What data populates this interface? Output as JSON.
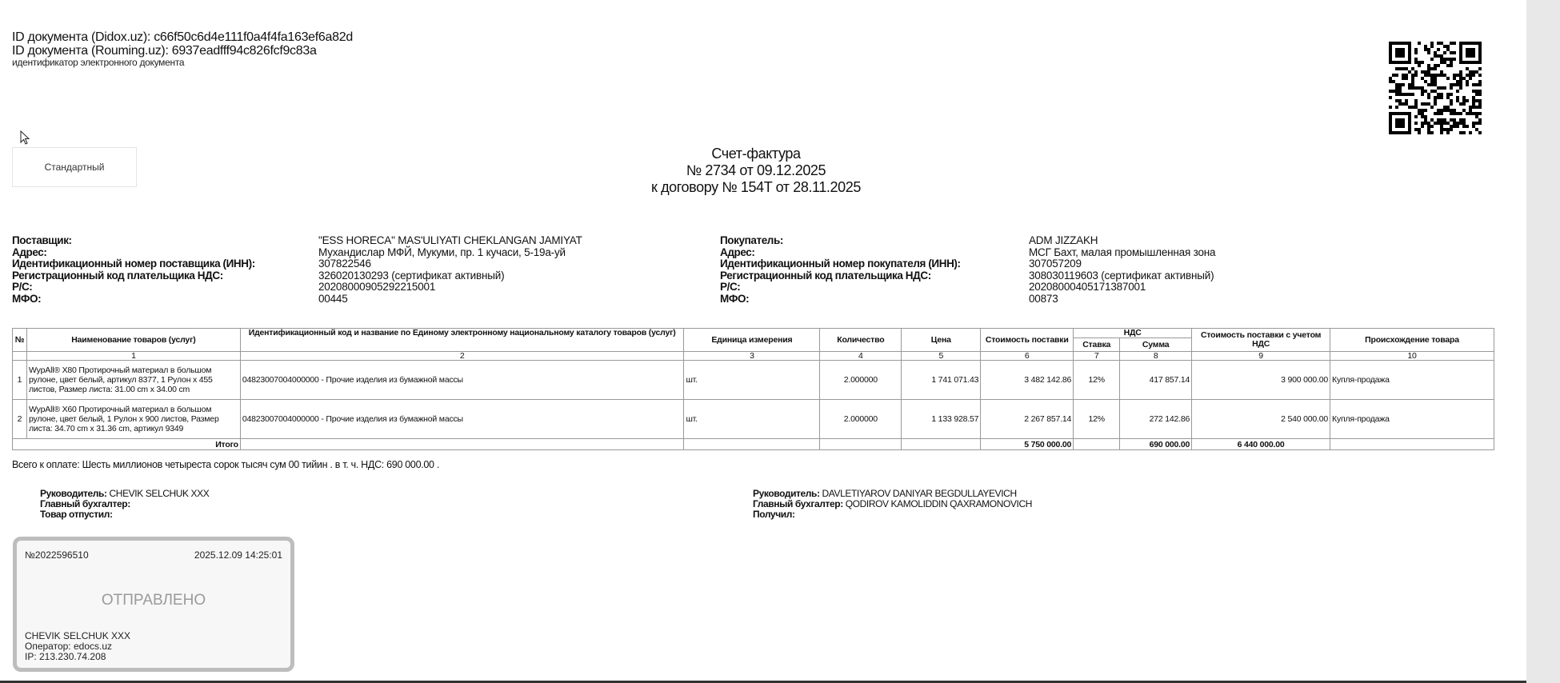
{
  "document_ids": {
    "didox": "ID документа (Didox.uz): c66f50c6d4e111f0a4f4fa163ef6a82d",
    "rouming": "ID документа (Rouming.uz): 6937eadfff94c826fcf9c83a",
    "caption": "идентификатор электронного документа"
  },
  "type_button": "Стандартный",
  "title": {
    "line1": "Счет-фактура",
    "line2": "№ 2734 от 09.12.2025",
    "line3": "к договору № 154T от 28.11.2025"
  },
  "seller": {
    "rows": [
      {
        "label": "Поставщик:",
        "value": "\"ESS HORECA\" MAS'ULIYATI CHEKLANGAN JAMIYAT"
      },
      {
        "label": "Адрес:",
        "value": "Мухандислар МФЙ, Мукуми, пр. 1 кучаси, 5-19а-уй"
      },
      {
        "label": "Идентификационный номер поставщика  (ИНН):",
        "value": "307822546"
      },
      {
        "label": "Регистрационный код плательщика НДС:",
        "value": "326020130293 (сертификат активный)"
      },
      {
        "label": "Р/С:",
        "value": "20208000905292215001"
      },
      {
        "label": "МФО:",
        "value": "00445"
      }
    ]
  },
  "buyer": {
    "rows": [
      {
        "label": "Покупатель:",
        "value": "ADM JIZZAKH"
      },
      {
        "label": "Адрес:",
        "value": "МСГ Бахт, малая промышленная зона"
      },
      {
        "label": "Идентификационный номер покупателя (ИНН):",
        "value": "307057209"
      },
      {
        "label": "Регистрационный код плательщика НДС:",
        "value": "308030119603 (сертификат активный)"
      },
      {
        "label": "Р/С:",
        "value": "20208000405171387001"
      },
      {
        "label": "МФО:",
        "value": "00873"
      }
    ]
  },
  "table": {
    "headers": {
      "no": "№",
      "name": "Наименование товаров (услуг)",
      "code": "Идентификационный код и название по Единому электронному национальному каталогу товаров (услуг)",
      "unit": "Единица измерения",
      "qty": "Количество",
      "price": "Цена",
      "cost": "Стоимость поставки",
      "vat": "НДС",
      "rate": "Ставка",
      "sum": "Сумма",
      "total": "Стоимость поставки с учетом НДС",
      "origin": "Происхождение товара"
    },
    "col_numbers": [
      "1",
      "2",
      "3",
      "4",
      "5",
      "6",
      "7",
      "8",
      "9",
      "10"
    ],
    "rows": [
      {
        "no": "1",
        "name": "WypAll® X80 Протирочный материал в большом рулоне, цвет белый, артикул 8377, 1 Рулон x 455 листов, Размер листа: 31.00 cm x 34.00 cm",
        "code": "04823007004000000 - Прочие изделия из бумажной массы",
        "unit": "шт.",
        "qty": "2.000000",
        "price": "1 741 071.43",
        "cost": "3 482 142.86",
        "rate": "12%",
        "sum": "417 857.14",
        "total": "3 900 000.00",
        "origin": "Купля-продажа"
      },
      {
        "no": "2",
        "name": "WypAll® X60 Протирочный материал в большом рулоне, цвет белый, 1 Рулон x 900 листов, Размер листа: 34.70 cm x 31.36 cm, артикул 9349",
        "code": "04823007004000000 - Прочие изделия из бумажной массы",
        "unit": "шт.",
        "qty": "2.000000",
        "price": "1 133 928.57",
        "cost": "2 267 857.14",
        "rate": "12%",
        "sum": "272 142.86",
        "total": "2 540 000.00",
        "origin": "Купля-продажа"
      }
    ],
    "totals": {
      "label": "Итого",
      "cost": "5 750 000.00",
      "sum": "690 000.00",
      "total": "6 440 000.00"
    }
  },
  "amount_in_words": "Всего к оплате: Шесть миллионов четыреста сорок тысяч сум 00 тийин . в т. ч. НДС: 690 000.00 .",
  "signatures": {
    "left": [
      {
        "label": "Руководитель:",
        "value": "CHEVIK SELCHUK XXX"
      },
      {
        "label": "Главный бухгалтер:",
        "value": ""
      },
      {
        "label": "Товар отпустил:",
        "value": ""
      }
    ],
    "right": [
      {
        "label": "Руководитель:",
        "value": "DAVLETIYAROV DANIYAR BEGDULLAYEVICH"
      },
      {
        "label": "Главный бухгалтер:",
        "value": "QODIROV KAMOLIDDIN QAXRAMONOVICH"
      },
      {
        "label": "Получил:",
        "value": ""
      }
    ]
  },
  "stamp": {
    "number": "№2022596510",
    "datetime": "2025.12.09 14:25:01",
    "status": "ОТПРАВЛЕНО",
    "signer": "CHEVIK SELCHUK XXX",
    "operator": "Оператор: edocs.uz",
    "ip": "IP: 213.230.74.208"
  }
}
